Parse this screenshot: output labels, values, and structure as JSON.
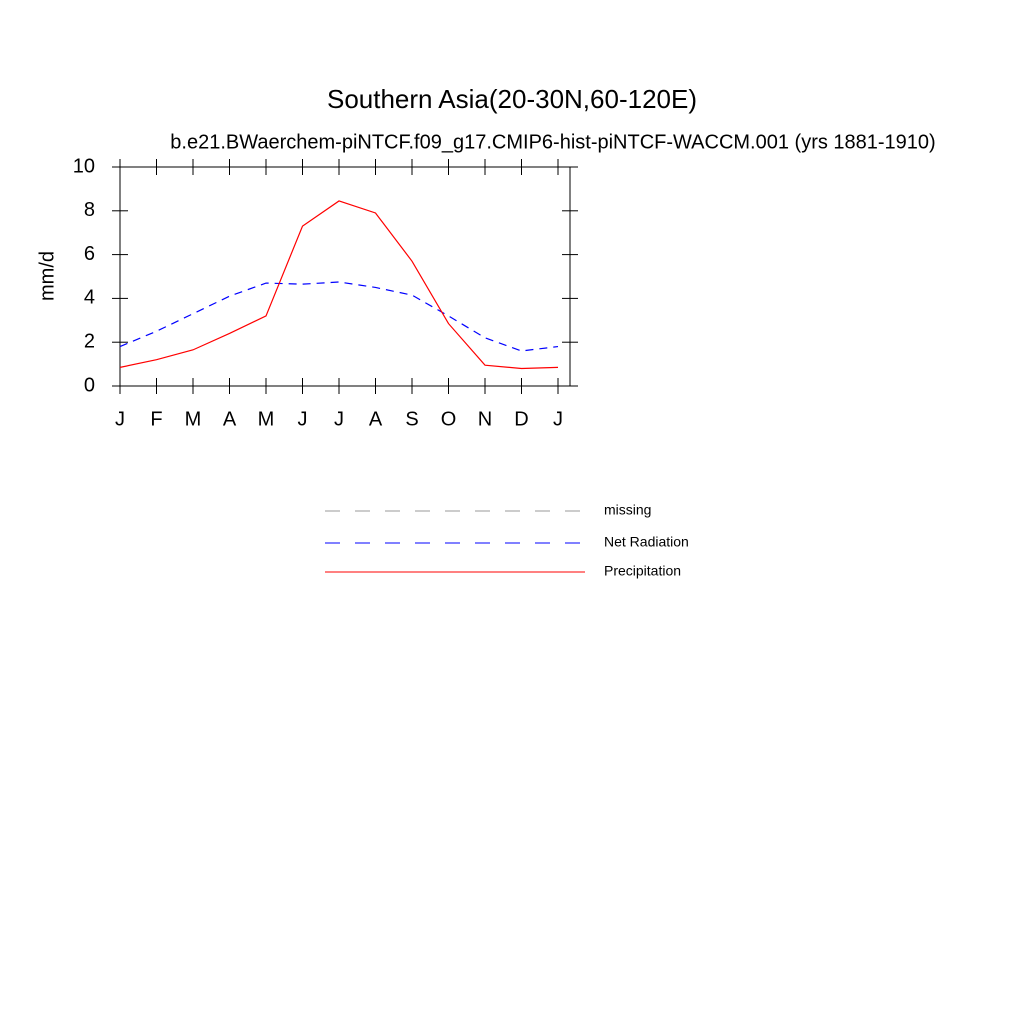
{
  "chart_data": {
    "type": "line",
    "title": "Southern Asia(20-30N,60-120E)",
    "subtitle": "b.e21.BWaerchem-piNTCF.f09_g17.CMIP6-hist-piNTCF-WACCM.001 (yrs 1881-1910)",
    "y_label": "mm/d",
    "categories": [
      "J",
      "F",
      "M",
      "A",
      "M",
      "J",
      "J",
      "A",
      "S",
      "O",
      "N",
      "D",
      "J"
    ],
    "ylim": [
      0,
      10
    ],
    "yticks": [
      0,
      2,
      4,
      6,
      8,
      10
    ],
    "series": [
      {
        "name": "missing",
        "color": "#999999",
        "dash": true,
        "values": [
          null,
          null,
          null,
          null,
          null,
          null,
          null,
          null,
          null,
          null,
          null,
          null,
          null
        ]
      },
      {
        "name": "Net Radiation",
        "color": "#0000ff",
        "dash": true,
        "values": [
          1.8,
          2.5,
          3.3,
          4.1,
          4.7,
          4.65,
          4.75,
          4.5,
          4.15,
          3.2,
          2.2,
          1.6,
          1.8
        ]
      },
      {
        "name": "Precipitation",
        "color": "#ff0000",
        "dash": false,
        "values": [
          0.85,
          1.2,
          1.65,
          2.4,
          3.2,
          7.3,
          8.45,
          7.9,
          5.7,
          2.85,
          0.95,
          0.8,
          0.85
        ]
      }
    ]
  }
}
